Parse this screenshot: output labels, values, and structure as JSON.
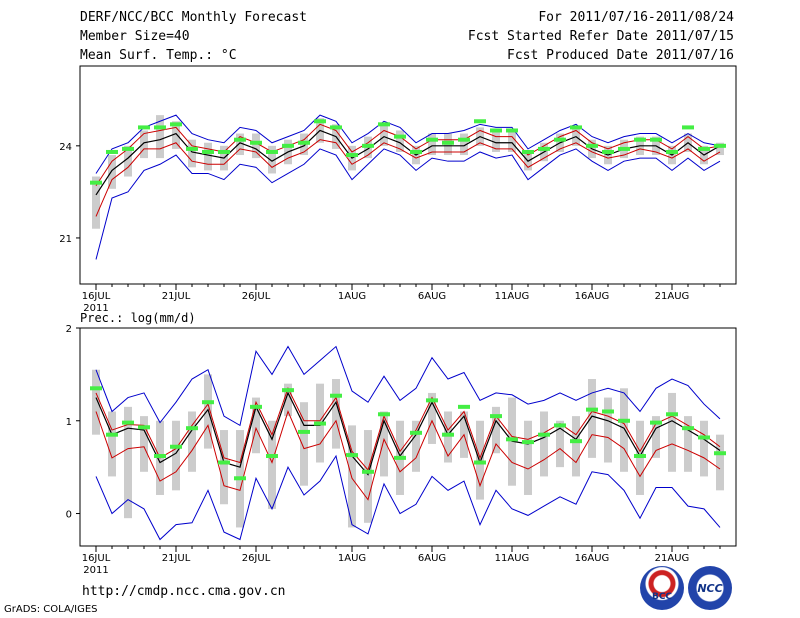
{
  "header": {
    "title": "DERF/NCC/BCC Monthly Forecast",
    "member_size": "Member Size=40",
    "variable": "Mean Surf. Temp.: °C",
    "forecast_period": "For 2011/07/16-2011/08/24",
    "fcst_started": "Fcst Started Refer Date 2011/07/15",
    "fcst_produced": "Fcst Produced Date 2011/07/16"
  },
  "footer": {
    "url": "http://cmdp.ncc.cma.gov.cn",
    "credit": "GrADS: COLA/IGES",
    "logo_bcc": "BCC",
    "logo_ncc": "NCC"
  },
  "colors": {
    "mean": "#000000",
    "inner_band": "#cc0000",
    "outer_band": "#0000cc",
    "box": "#cccccc",
    "marker": "#44ee44"
  },
  "chart_data": [
    {
      "type": "line",
      "title": "Mean Surf. Temp.: °C",
      "xlabel": "",
      "ylabel": "",
      "ylim": [
        19.5,
        26.6
      ],
      "yticks": [
        21,
        24
      ],
      "xtick_labels": [
        "16JUL",
        "21JUL",
        "26JUL",
        "1AUG",
        "6AUG",
        "11AUG",
        "16AUG",
        "21AUG"
      ],
      "xtick_day_index": [
        0,
        5,
        10,
        16,
        21,
        26,
        31,
        36
      ],
      "year_label": "2011",
      "days": 40,
      "series": [
        {
          "name": "ensemble mean",
          "values": [
            22.4,
            23.2,
            23.6,
            24.1,
            24.2,
            24.4,
            23.8,
            23.7,
            23.6,
            24.1,
            23.9,
            23.5,
            23.8,
            24.0,
            24.5,
            24.3,
            23.6,
            23.9,
            24.3,
            24.1,
            23.7,
            24.0,
            24.0,
            24.0,
            24.3,
            24.1,
            24.1,
            23.5,
            23.8,
            24.1,
            24.3,
            23.9,
            23.7,
            23.9,
            24.0,
            24.0,
            23.7,
            24.1,
            23.7,
            24.0
          ]
        },
        {
          "name": "upper red",
          "values": [
            22.7,
            23.5,
            23.9,
            24.4,
            24.5,
            24.6,
            24.0,
            23.9,
            23.8,
            24.3,
            24.1,
            23.8,
            24.0,
            24.2,
            24.7,
            24.5,
            23.8,
            24.1,
            24.5,
            24.3,
            23.9,
            24.2,
            24.2,
            24.2,
            24.5,
            24.3,
            24.3,
            23.7,
            24.0,
            24.3,
            24.5,
            24.1,
            23.9,
            24.1,
            24.2,
            24.2,
            23.9,
            24.3,
            23.9,
            24.0
          ]
        },
        {
          "name": "lower red",
          "values": [
            21.7,
            22.9,
            23.3,
            23.9,
            23.9,
            24.1,
            23.5,
            23.4,
            23.4,
            23.9,
            23.8,
            23.3,
            23.6,
            23.8,
            24.2,
            24.1,
            23.4,
            23.7,
            24.1,
            23.9,
            23.6,
            23.8,
            23.8,
            23.8,
            24.1,
            23.9,
            23.9,
            23.3,
            23.6,
            23.9,
            24.1,
            23.8,
            23.6,
            23.7,
            23.9,
            23.8,
            23.6,
            23.9,
            23.5,
            23.8
          ]
        },
        {
          "name": "upper blue",
          "values": [
            23.1,
            23.9,
            24.1,
            24.6,
            24.8,
            25.0,
            24.4,
            24.2,
            24.1,
            24.6,
            24.5,
            24.1,
            24.3,
            24.5,
            25.0,
            24.8,
            24.1,
            24.4,
            24.8,
            24.6,
            24.1,
            24.4,
            24.4,
            24.5,
            24.7,
            24.6,
            24.6,
            23.9,
            24.2,
            24.5,
            24.7,
            24.3,
            24.1,
            24.3,
            24.4,
            24.4,
            24.1,
            24.4,
            24.1,
            24.0
          ]
        },
        {
          "name": "lower blue",
          "values": [
            20.3,
            22.3,
            22.5,
            23.2,
            23.4,
            23.7,
            23.1,
            23.1,
            22.9,
            23.4,
            23.3,
            22.8,
            23.1,
            23.4,
            23.9,
            23.7,
            22.9,
            23.4,
            23.9,
            23.7,
            23.2,
            23.6,
            23.5,
            23.5,
            23.8,
            23.6,
            23.7,
            22.9,
            23.3,
            23.7,
            23.9,
            23.5,
            23.2,
            23.5,
            23.6,
            23.6,
            23.2,
            23.6,
            23.2,
            23.5
          ]
        },
        {
          "name": "box upper",
          "values": [
            23.0,
            23.7,
            24.0,
            24.5,
            25.0,
            24.8,
            24.2,
            24.1,
            24.0,
            24.4,
            24.4,
            24.0,
            24.2,
            24.4,
            24.9,
            24.7,
            24.0,
            24.3,
            24.7,
            24.5,
            24.0,
            24.4,
            24.4,
            24.4,
            24.6,
            24.5,
            24.5,
            23.8,
            24.1,
            24.4,
            24.6,
            24.2,
            24.0,
            24.2,
            24.3,
            24.3,
            24.0,
            24.4,
            24.0,
            24.1
          ]
        },
        {
          "name": "box lower",
          "values": [
            21.3,
            22.6,
            23.0,
            23.6,
            23.6,
            23.9,
            23.3,
            23.2,
            23.2,
            23.7,
            23.6,
            23.1,
            23.4,
            23.7,
            24.1,
            23.9,
            23.2,
            23.6,
            24.0,
            23.8,
            23.4,
            23.7,
            23.7,
            23.7,
            24.0,
            23.8,
            23.8,
            23.2,
            23.5,
            23.8,
            24.0,
            23.6,
            23.4,
            23.6,
            23.7,
            23.7,
            23.4,
            23.8,
            23.4,
            23.7
          ]
        },
        {
          "name": "green marker",
          "values": [
            22.8,
            23.8,
            23.9,
            24.6,
            24.6,
            24.7,
            23.9,
            23.8,
            23.8,
            24.2,
            24.1,
            23.8,
            24.0,
            24.1,
            24.8,
            24.6,
            23.7,
            24.0,
            24.7,
            24.3,
            23.8,
            24.2,
            24.1,
            24.2,
            24.8,
            24.5,
            24.5,
            23.8,
            23.9,
            24.2,
            24.6,
            24.0,
            23.8,
            23.9,
            24.2,
            24.2,
            23.8,
            24.6,
            23.9,
            24.0
          ]
        }
      ]
    },
    {
      "type": "line",
      "title": "Prec.: log(mm/d)",
      "xlabel": "",
      "ylabel": "",
      "ylim": [
        -0.35,
        2.0
      ],
      "yticks": [
        0,
        1,
        2
      ],
      "xtick_labels": [
        "16JUL",
        "21JUL",
        "26JUL",
        "1AUG",
        "6AUG",
        "11AUG",
        "16AUG",
        "21AUG"
      ],
      "xtick_day_index": [
        0,
        5,
        10,
        16,
        21,
        26,
        31,
        36
      ],
      "year_label": "2011",
      "days": 40,
      "series": [
        {
          "name": "ensemble mean",
          "values": [
            1.25,
            0.85,
            0.92,
            0.9,
            0.55,
            0.65,
            0.9,
            1.12,
            0.55,
            0.5,
            1.15,
            0.8,
            1.3,
            0.95,
            0.95,
            1.2,
            0.62,
            0.42,
            1.0,
            0.62,
            0.85,
            1.2,
            0.85,
            1.05,
            0.55,
            1.0,
            0.78,
            0.75,
            0.82,
            0.92,
            0.8,
            1.05,
            1.0,
            0.92,
            0.62,
            0.92,
            1.0,
            0.9,
            0.8,
            0.68
          ]
        },
        {
          "name": "upper red",
          "values": [
            1.3,
            0.9,
            0.96,
            0.95,
            0.6,
            0.7,
            0.95,
            1.18,
            0.6,
            0.55,
            1.2,
            0.85,
            1.35,
            1.0,
            1.0,
            1.25,
            0.67,
            0.47,
            1.05,
            0.67,
            0.9,
            1.25,
            0.9,
            1.1,
            0.6,
            1.05,
            0.83,
            0.8,
            0.87,
            0.97,
            0.85,
            1.1,
            1.05,
            0.97,
            0.67,
            0.97,
            1.05,
            0.95,
            0.85,
            0.72
          ]
        },
        {
          "name": "lower red",
          "values": [
            1.1,
            0.6,
            0.7,
            0.72,
            0.35,
            0.45,
            0.68,
            0.95,
            0.3,
            0.25,
            0.92,
            0.55,
            1.1,
            0.7,
            0.75,
            1.0,
            0.38,
            0.15,
            0.8,
            0.45,
            0.6,
            1.0,
            0.62,
            0.85,
            0.3,
            0.75,
            0.55,
            0.48,
            0.58,
            0.7,
            0.55,
            0.85,
            0.82,
            0.7,
            0.4,
            0.68,
            0.75,
            0.68,
            0.6,
            0.48
          ]
        },
        {
          "name": "upper blue",
          "values": [
            1.55,
            1.1,
            1.25,
            1.3,
            0.98,
            1.2,
            1.45,
            1.55,
            1.05,
            0.95,
            1.75,
            1.5,
            1.8,
            1.5,
            1.65,
            1.8,
            1.32,
            1.2,
            1.48,
            1.22,
            1.35,
            1.68,
            1.45,
            1.52,
            1.22,
            1.3,
            1.28,
            1.18,
            1.22,
            1.3,
            1.22,
            1.3,
            1.35,
            1.3,
            1.1,
            1.35,
            1.45,
            1.38,
            1.18,
            1.02
          ]
        },
        {
          "name": "lower blue",
          "values": [
            0.4,
            0.0,
            0.15,
            0.05,
            -0.28,
            -0.12,
            -0.1,
            0.25,
            -0.2,
            -0.28,
            0.38,
            0.05,
            0.5,
            0.2,
            0.35,
            0.62,
            -0.12,
            -0.22,
            0.32,
            0.0,
            0.1,
            0.4,
            0.25,
            0.35,
            -0.12,
            0.25,
            0.05,
            -0.02,
            0.08,
            0.18,
            0.1,
            0.45,
            0.42,
            0.25,
            -0.05,
            0.28,
            0.28,
            0.08,
            0.05,
            -0.15
          ]
        },
        {
          "name": "box upper",
          "values": [
            1.55,
            1.1,
            1.15,
            1.05,
            1.0,
            1.0,
            1.1,
            1.5,
            0.9,
            0.9,
            1.25,
            1.0,
            1.4,
            1.2,
            1.4,
            1.45,
            0.95,
            0.9,
            1.1,
            1.0,
            1.0,
            1.3,
            1.1,
            1.1,
            1.0,
            1.15,
            1.25,
            1.0,
            1.1,
            1.0,
            1.05,
            1.45,
            1.25,
            1.35,
            1.0,
            1.05,
            1.3,
            1.05,
            1.0,
            0.85
          ]
        },
        {
          "name": "box lower",
          "values": [
            0.85,
            0.4,
            -0.05,
            0.45,
            0.2,
            0.25,
            0.45,
            0.7,
            0.1,
            -0.15,
            0.65,
            0.05,
            1.05,
            0.3,
            0.55,
            0.7,
            -0.15,
            -0.1,
            0.4,
            0.2,
            0.45,
            0.75,
            0.55,
            0.6,
            0.15,
            0.65,
            0.3,
            0.2,
            0.4,
            0.5,
            0.4,
            0.6,
            0.55,
            0.45,
            0.2,
            0.6,
            0.45,
            0.45,
            0.4,
            0.25
          ]
        },
        {
          "name": "green marker",
          "values": [
            1.35,
            0.85,
            0.98,
            0.93,
            0.62,
            0.72,
            0.92,
            1.2,
            0.55,
            0.38,
            1.15,
            0.62,
            1.33,
            0.88,
            0.97,
            1.27,
            0.63,
            0.45,
            1.07,
            0.6,
            0.87,
            1.22,
            0.85,
            1.15,
            0.55,
            1.05,
            0.8,
            0.77,
            0.85,
            0.95,
            0.78,
            1.12,
            1.1,
            1.0,
            0.62,
            0.98,
            1.07,
            0.92,
            0.82,
            0.65
          ]
        }
      ]
    }
  ]
}
